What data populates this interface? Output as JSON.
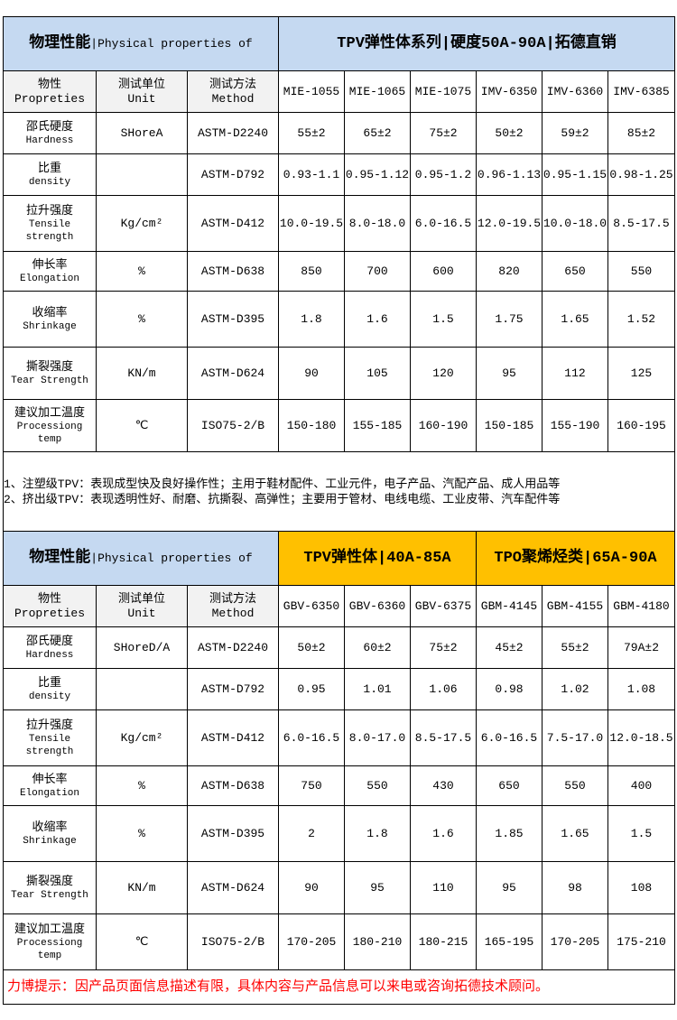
{
  "columns_label": {
    "property_zh": "物性",
    "property_en": "Propreties",
    "unit_zh": "测试单位",
    "unit_en": "Unit",
    "method_zh": "测试方法",
    "method_en": "Method"
  },
  "tables": [
    {
      "title_zh": "物理性能",
      "title_en": "|Physical properties of",
      "groups": [
        {
          "label": "TPV弹性体系列|硬度50A-90A|拓德直销",
          "color": "#c5d9f1",
          "span": 6
        }
      ],
      "models": [
        "MIE-1055",
        "MIE-1065",
        "MIE-1075",
        "IMV-6350",
        "IMV-6360",
        "IMV-6385"
      ],
      "rows": [
        {
          "zh": "邵氏硬度",
          "en": [
            "Hardness"
          ],
          "unit": "SHoreA",
          "method": "ASTM-D2240",
          "values": [
            "55±2",
            "65±2",
            "75±2",
            "50±2",
            "59±2",
            "85±2"
          ],
          "h": 46
        },
        {
          "zh": "比重",
          "en": [
            "density"
          ],
          "unit": "",
          "method": "ASTM-D792",
          "values": [
            "0.93-1.1",
            "0.95-1.12",
            "0.95-1.2",
            "0.96-1.13",
            "0.95-1.15",
            "0.98-1.25"
          ],
          "h": 46
        },
        {
          "zh": "拉升强度",
          "en": [
            "Tensile",
            "strength"
          ],
          "unit": "Kg/cm²",
          "method": "ASTM-D412",
          "values": [
            "10.0-19.5",
            "8.0-18.0",
            "6.0-16.5",
            "12.0-19.5",
            "10.0-18.0",
            "8.5-17.5"
          ],
          "h": 62
        },
        {
          "zh": "伸长率",
          "en": [
            "Elongation"
          ],
          "unit": "%",
          "method": "ASTM-D638",
          "values": [
            "850",
            "700",
            "600",
            "820",
            "650",
            "550"
          ],
          "h": 44
        },
        {
          "zh": "收缩率",
          "en": [
            "Shrinkage"
          ],
          "unit": "%",
          "method": "ASTM-D395",
          "values": [
            "1.8",
            "1.6",
            "1.5",
            "1.75",
            "1.65",
            "1.52"
          ],
          "h": 62
        },
        {
          "zh": "撕裂强度",
          "en": [
            "Tear Strength"
          ],
          "unit": "KN/m",
          "method": "ASTM-D624",
          "values": [
            "90",
            "105",
            "120",
            "95",
            "112",
            "125"
          ],
          "h": 58
        },
        {
          "zh": "建议加工温度",
          "en": [
            "Processiong",
            "temp"
          ],
          "unit": "℃",
          "method": "ISO75-2/B",
          "values": [
            "150-180",
            "155-185",
            "160-190",
            "150-185",
            "155-190",
            "160-195"
          ],
          "h": 58
        }
      ]
    },
    {
      "title_zh": "物理性能",
      "title_en": "|Physical properties of",
      "groups": [
        {
          "label": "TPV弹性体|40A-85A",
          "color": "#ffc000",
          "span": 3
        },
        {
          "label": "TPO聚烯烃类|65A-90A",
          "color": "#ffc000",
          "span": 3
        }
      ],
      "models": [
        "GBV-6350",
        "GBV-6360",
        "GBV-6375",
        "GBM-4145",
        "GBM-4155",
        "GBM-4180"
      ],
      "rows": [
        {
          "zh": "邵氏硬度",
          "en": [
            "Hardness"
          ],
          "unit": "SHoreD/A",
          "method": "ASTM-D2240",
          "values": [
            "50±2",
            "60±2",
            "75±2",
            "45±2",
            "55±2",
            "79A±2"
          ],
          "h": 46
        },
        {
          "zh": "比重",
          "en": [
            "density"
          ],
          "unit": "",
          "method": "ASTM-D792",
          "values": [
            "0.95",
            "1.01",
            "1.06",
            "0.98",
            "1.02",
            "1.08"
          ],
          "h": 46
        },
        {
          "zh": "拉升强度",
          "en": [
            "Tensile",
            "strength"
          ],
          "unit": "Kg/cm²",
          "method": "ASTM-D412",
          "values": [
            "6.0-16.5",
            "8.0-17.0",
            "8.5-17.5",
            "6.0-16.5",
            "7.5-17.0",
            "12.0-18.5"
          ],
          "h": 62
        },
        {
          "zh": "伸长率",
          "en": [
            "Elongation"
          ],
          "unit": "%",
          "method": "ASTM-D638",
          "values": [
            "750",
            "550",
            "430",
            "650",
            "550",
            "400"
          ],
          "h": 44
        },
        {
          "zh": "收缩率",
          "en": [
            "Shrinkage"
          ],
          "unit": "%",
          "method": "ASTM-D395",
          "values": [
            "2",
            "1.8",
            "1.6",
            "1.85",
            "1.65",
            "1.5"
          ],
          "h": 62
        },
        {
          "zh": "撕裂强度",
          "en": [
            "Tear Strength"
          ],
          "unit": "KN/m",
          "method": "ASTM-D624",
          "values": [
            "90",
            "95",
            "110",
            "95",
            "98",
            "108"
          ],
          "h": 58
        },
        {
          "zh": "建议加工温度",
          "en": [
            "Processiong",
            "temp"
          ],
          "unit": "℃",
          "method": "ISO75-2/B",
          "values": [
            "170-205",
            "180-210",
            "180-215",
            "165-195",
            "170-205",
            "175-210"
          ],
          "h": 62
        }
      ]
    }
  ],
  "notes": [
    "1、注塑级TPV：表现成型快及良好操作性；主用于鞋材配件、工业元件，电子产品、汽配产品、成人用品等",
    "2、挤出级TPV：表现透明性好、耐磨、抗撕裂、高弹性；主要用于管材、电线电缆、工业皮带、汽车配件等"
  ],
  "footer": "力博提示：因产品页面信息描述有限，具体内容与产品信息可以来电或咨询拓德技术顾问。"
}
